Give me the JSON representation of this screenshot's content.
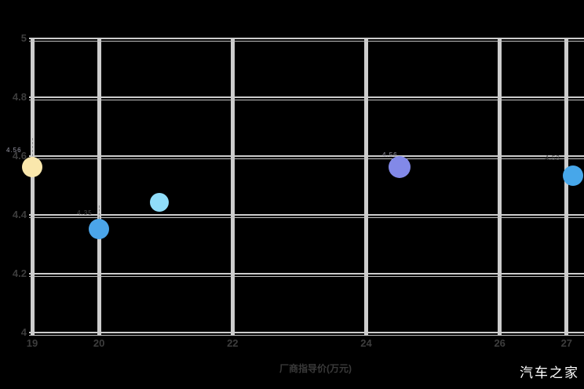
{
  "chart_data": {
    "type": "scatter",
    "title": "",
    "xlabel": "厂商指导价(万元)",
    "ylabel": "",
    "xlim": [
      19,
      27
    ],
    "ylim": [
      4,
      5
    ],
    "grid": true,
    "x_ticks": [
      {
        "value": 19,
        "label": "19"
      },
      {
        "value": 20,
        "label": "20"
      },
      {
        "value": 22,
        "label": "22"
      },
      {
        "value": 24,
        "label": "24"
      },
      {
        "value": 26,
        "label": "26"
      },
      {
        "value": 27,
        "label": "27"
      }
    ],
    "y_ticks": [
      {
        "value": 5,
        "label": "5"
      },
      {
        "value": 4.8,
        "label": "4.8"
      },
      {
        "value": 4.6,
        "label": "4.6"
      },
      {
        "value": 4.4,
        "label": "4.4"
      },
      {
        "value": 4.2,
        "label": "4.2"
      },
      {
        "value": 4,
        "label": "4"
      }
    ],
    "points": [
      {
        "x": 19.0,
        "y": 4.56,
        "label": "4.56",
        "color": "#fae7ac",
        "radius": 13
      },
      {
        "x": 20.0,
        "y": 4.35,
        "label": "4.35",
        "color": "#4ba5e9",
        "radius": 13
      },
      {
        "x": 20.9,
        "y": 4.44,
        "label": "",
        "color": "#90ddf9",
        "radius": 12
      },
      {
        "x": 24.5,
        "y": 4.56,
        "label": "4.56",
        "color": "#8289e8",
        "radius": 14
      },
      {
        "x": 27.1,
        "y": 4.53,
        "label": "4.53",
        "color": "#47a7ea",
        "radius": 13
      }
    ]
  },
  "watermark": "汽车之家",
  "colors": {
    "background": "#000000",
    "grid": "#cdcdcd",
    "tick_text": "#3d3d3d",
    "watermark": "#ffffff",
    "label_dark": "#474747",
    "label_light": "#9a9aa8"
  }
}
